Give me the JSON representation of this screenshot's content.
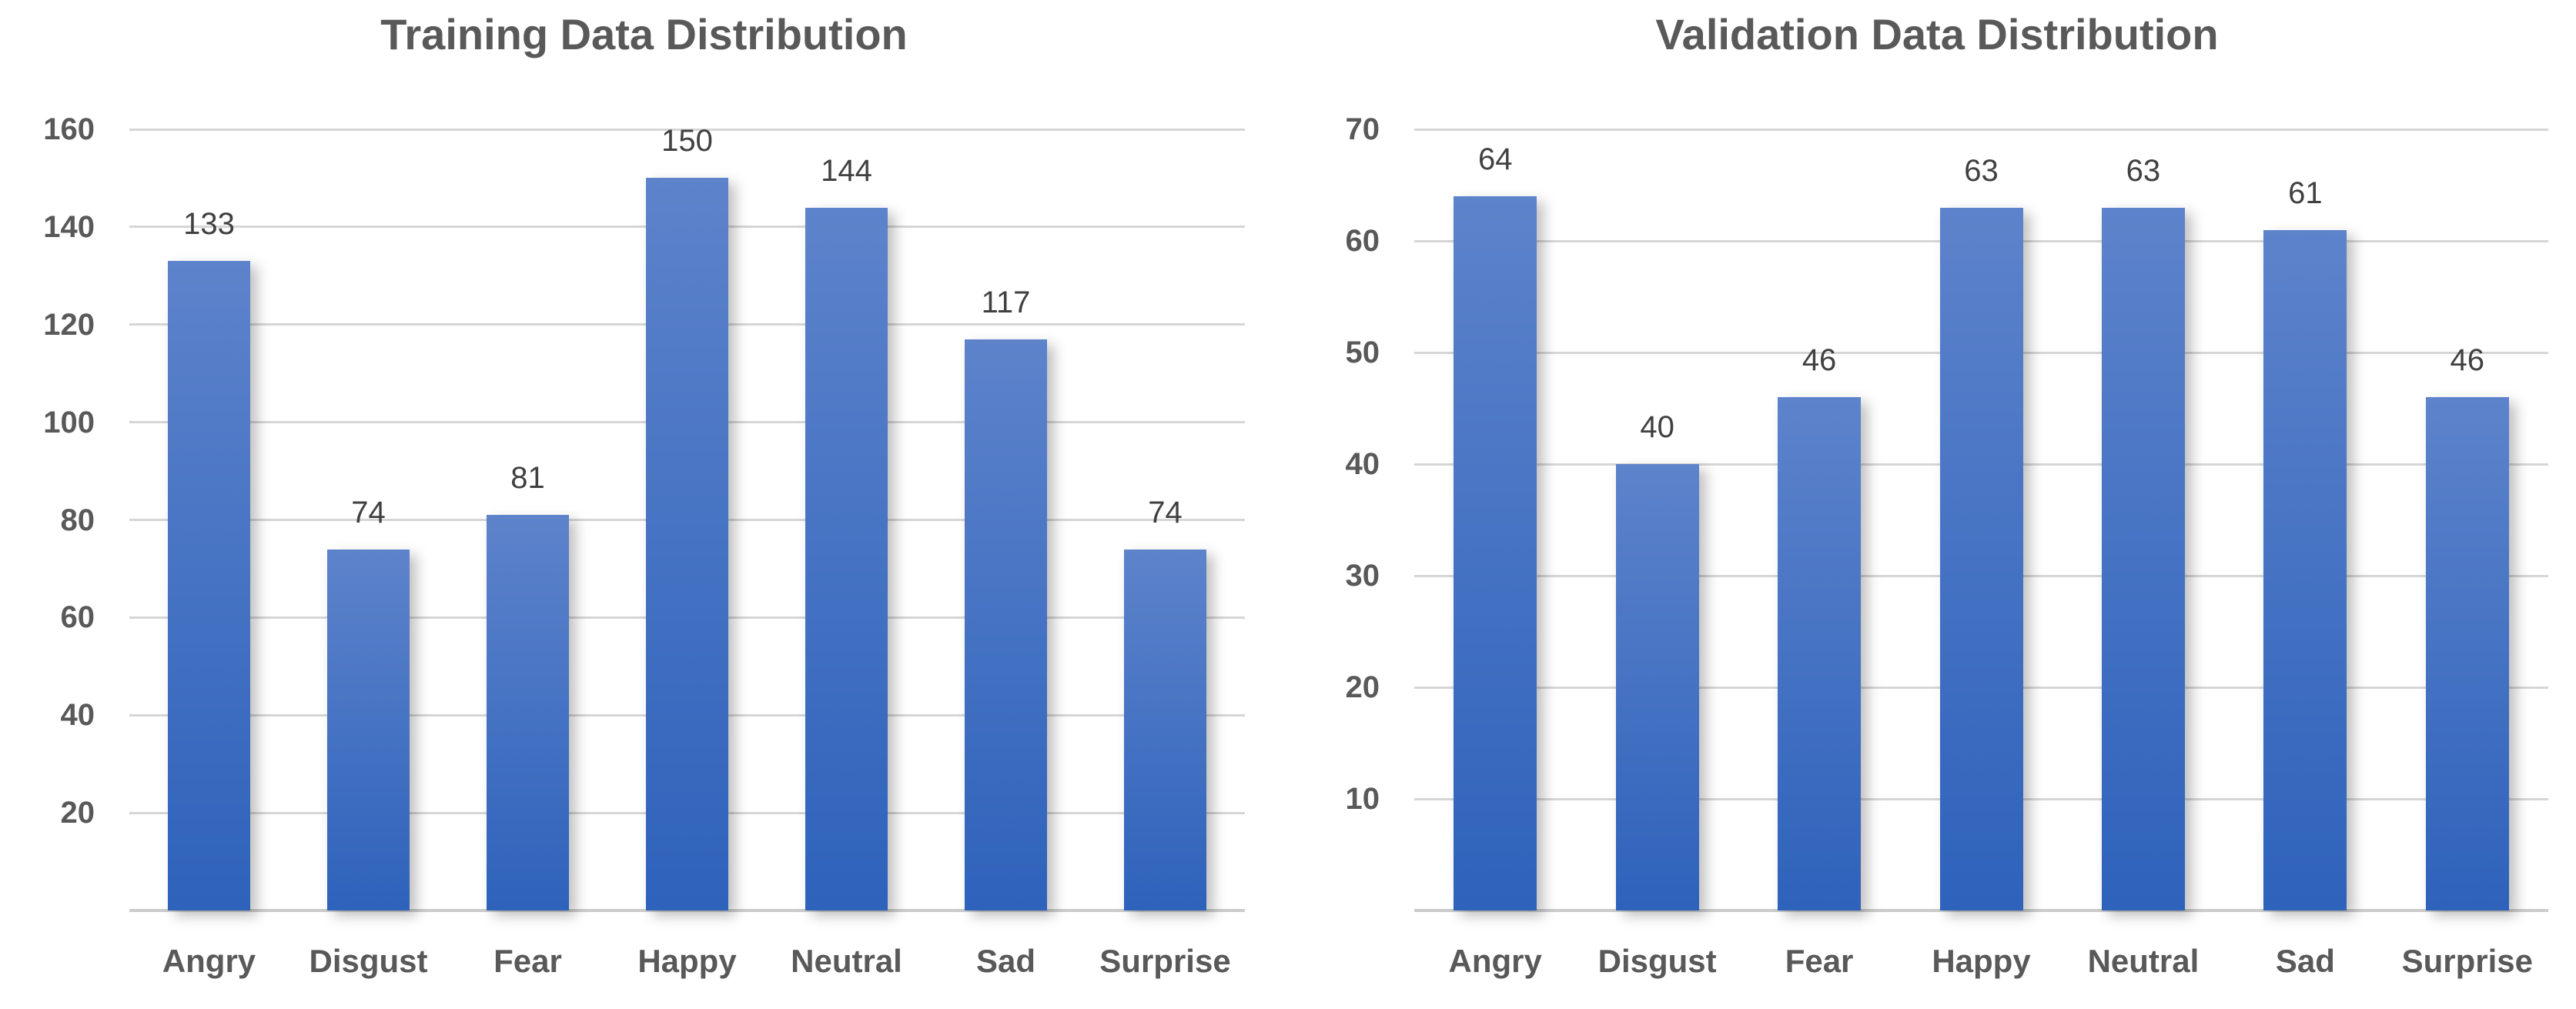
{
  "chart_data": [
    {
      "type": "bar",
      "title": "Training Data Distribution",
      "categories": [
        "Angry",
        "Disgust",
        "Fear",
        "Happy",
        "Neutral",
        "Sad",
        "Surprise"
      ],
      "values": [
        133,
        74,
        81,
        150,
        144,
        117,
        74
      ],
      "xlabel": "",
      "ylabel": "",
      "ylim": [
        0,
        160
      ],
      "yticks": [
        20,
        40,
        60,
        80,
        100,
        120,
        140,
        160
      ],
      "grid": true,
      "legend": "none",
      "data_labels": true
    },
    {
      "type": "bar",
      "title": "Validation Data Distribution",
      "categories": [
        "Angry",
        "Disgust",
        "Fear",
        "Happy",
        "Neutral",
        "Sad",
        "Surprise"
      ],
      "values": [
        64,
        40,
        46,
        63,
        63,
        61,
        46
      ],
      "xlabel": "",
      "ylabel": "",
      "ylim": [
        0,
        70
      ],
      "yticks": [
        10,
        20,
        30,
        40,
        50,
        60,
        70
      ],
      "grid": true,
      "legend": "none",
      "data_labels": true
    }
  ],
  "style": {
    "title_color": "#595959",
    "axis_label_color": "#595959",
    "data_label_color": "#404040",
    "gridline_color": "#d6d6d6",
    "axis_line_color": "#cccccc",
    "bar_gradient_top": "#5d83cb",
    "bar_gradient_bottom": "#2e62bb",
    "background_color": "#ffffff"
  }
}
